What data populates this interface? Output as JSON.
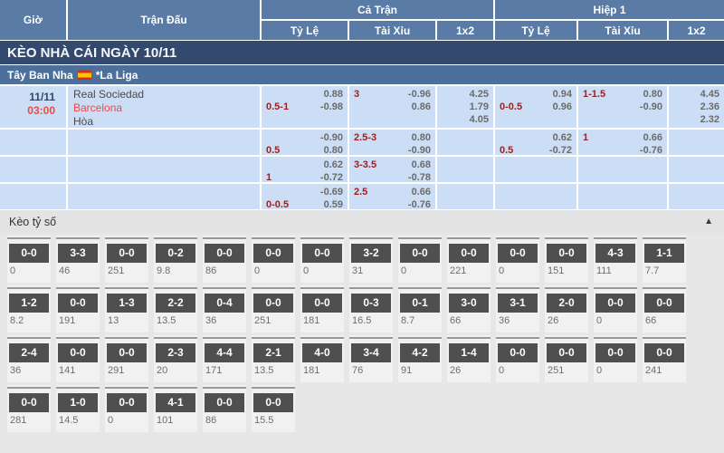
{
  "table_header": {
    "time": "Giờ",
    "match": "Trận Đấu",
    "full_time": "Cả Trận",
    "first_half": "Hiệp 1",
    "handicap": "Tỷ Lệ",
    "over_under": "Tài Xỉu",
    "one_x_two": "1x2"
  },
  "date_bar": {
    "title": "KÈO NHÀ CÁI NGÀY 10/11"
  },
  "league_bar": {
    "country": "Tây Ban Nha",
    "flag": "spain-flag",
    "league": "*La Liga"
  },
  "match": {
    "date": "11/11",
    "time": "03:00",
    "teams": [
      "Real Sociedad",
      "Barcelona",
      "Hòa"
    ]
  },
  "odds_rows": [
    {
      "cells": [
        {
          "lines": [
            [
              "",
              "0.88"
            ],
            [
              "0.5-1",
              "-0.98"
            ]
          ]
        },
        {
          "lines": [
            [
              "3",
              "-0.96"
            ],
            [
              "",
              "0.86"
            ]
          ]
        },
        {
          "values": [
            "4.25",
            "1.79",
            "4.05"
          ]
        },
        {
          "lines": [
            [
              "",
              "0.94"
            ],
            [
              "0-0.5",
              "0.96"
            ]
          ]
        },
        {
          "lines": [
            [
              "1-1.5",
              "0.80"
            ],
            [
              "",
              "-0.90"
            ]
          ]
        },
        {
          "values": [
            "4.45",
            "2.36",
            "2.32"
          ]
        }
      ]
    },
    {
      "cells": [
        {
          "lines": [
            [
              "",
              "-0.90"
            ],
            [
              "0.5",
              "0.80"
            ]
          ]
        },
        {
          "lines": [
            [
              "2.5-3",
              "0.80"
            ],
            [
              "",
              "-0.90"
            ]
          ]
        },
        {
          "values": []
        },
        {
          "lines": [
            [
              "",
              "0.62"
            ],
            [
              "0.5",
              "-0.72"
            ]
          ]
        },
        {
          "lines": [
            [
              "1",
              "0.66"
            ],
            [
              "",
              "-0.76"
            ]
          ]
        },
        {
          "values": []
        }
      ]
    },
    {
      "cells": [
        {
          "lines": [
            [
              "",
              "0.62"
            ],
            [
              "1",
              "-0.72"
            ]
          ]
        },
        {
          "lines": [
            [
              "3-3.5",
              "0.68"
            ],
            [
              "",
              "-0.78"
            ]
          ]
        },
        {
          "values": []
        },
        {
          "lines": []
        },
        {
          "lines": []
        },
        {
          "values": []
        }
      ]
    },
    {
      "cells": [
        {
          "lines": [
            [
              "",
              "-0.69"
            ],
            [
              "0-0.5",
              "0.59"
            ]
          ]
        },
        {
          "lines": [
            [
              "2.5",
              "0.66"
            ],
            [
              "",
              "-0.76"
            ]
          ]
        },
        {
          "values": []
        },
        {
          "lines": []
        },
        {
          "lines": []
        },
        {
          "values": []
        }
      ]
    }
  ],
  "score_section": {
    "title": "Kèo tỷ số",
    "collapse_glyph": "▲",
    "rows": [
      [
        {
          "score": "0-0",
          "value": "0"
        },
        {
          "score": "3-3",
          "value": "46"
        },
        {
          "score": "0-0",
          "value": "251"
        },
        {
          "score": "0-2",
          "value": "9.8"
        },
        {
          "score": "0-0",
          "value": "86"
        },
        {
          "score": "0-0",
          "value": "0"
        },
        {
          "score": "0-0",
          "value": "0"
        },
        {
          "score": "3-2",
          "value": "31"
        },
        {
          "score": "0-0",
          "value": "0"
        },
        {
          "score": "0-0",
          "value": "221"
        },
        {
          "score": "0-0",
          "value": "0"
        },
        {
          "score": "0-0",
          "value": "151"
        },
        {
          "score": "4-3",
          "value": "111"
        },
        {
          "score": "1-1",
          "value": "7.7"
        }
      ],
      [
        {
          "score": "1-2",
          "value": "8.2"
        },
        {
          "score": "0-0",
          "value": "191"
        },
        {
          "score": "1-3",
          "value": "13"
        },
        {
          "score": "2-2",
          "value": "13.5"
        },
        {
          "score": "0-4",
          "value": "36"
        },
        {
          "score": "0-0",
          "value": "251"
        },
        {
          "score": "0-0",
          "value": "181"
        },
        {
          "score": "0-3",
          "value": "16.5"
        },
        {
          "score": "0-1",
          "value": "8.7"
        },
        {
          "score": "3-0",
          "value": "66"
        },
        {
          "score": "3-1",
          "value": "36"
        },
        {
          "score": "2-0",
          "value": "26"
        },
        {
          "score": "0-0",
          "value": "0"
        },
        {
          "score": "0-0",
          "value": "66"
        }
      ],
      [
        {
          "score": "2-4",
          "value": "36"
        },
        {
          "score": "0-0",
          "value": "141"
        },
        {
          "score": "0-0",
          "value": "291"
        },
        {
          "score": "2-3",
          "value": "20"
        },
        {
          "score": "4-4",
          "value": "171"
        },
        {
          "score": "2-1",
          "value": "13.5"
        },
        {
          "score": "4-0",
          "value": "181"
        },
        {
          "score": "3-4",
          "value": "76"
        },
        {
          "score": "4-2",
          "value": "91"
        },
        {
          "score": "1-4",
          "value": "26"
        },
        {
          "score": "0-0",
          "value": "0"
        },
        {
          "score": "0-0",
          "value": "251"
        },
        {
          "score": "0-0",
          "value": "0"
        },
        {
          "score": "0-0",
          "value": "241"
        }
      ],
      [
        {
          "score": "0-0",
          "value": "281"
        },
        {
          "score": "1-0",
          "value": "14.5"
        },
        {
          "score": "0-0",
          "value": "0"
        },
        {
          "score": "4-1",
          "value": "101"
        },
        {
          "score": "0-0",
          "value": "86"
        },
        {
          "score": "0-0",
          "value": "15.5"
        }
      ]
    ]
  },
  "colors": {
    "header_blue": "#5a7ba6",
    "title_navy": "#33496d",
    "league_blue": "#4c6f9b",
    "cell_blue": "#cbdef6",
    "handicap_maroon": "#9c1f1f",
    "odds_gray": "#6b6b6b",
    "accent_red": "#ea4c44",
    "chip_dark": "#4f4f4f"
  }
}
